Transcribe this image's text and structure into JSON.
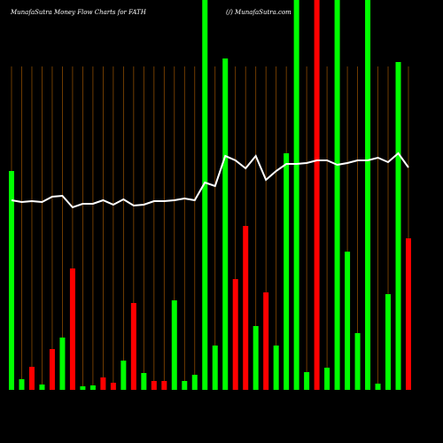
{
  "chart_data": {
    "type": "bar",
    "title": "MunafaSutra  Money Flow  Charts for FATH",
    "subtitle": "(/) MunafaSutra.com",
    "ylim": [
      0,
      440
    ],
    "bar_colors": [
      "#00ff00",
      "#00ff00",
      "#ff0000",
      "#00ff00",
      "#ff0000",
      "#00ff00",
      "#ff0000",
      "#00ff00",
      "#00ff00",
      "#ff0000",
      "#ff0000",
      "#00ff00",
      "#ff0000",
      "#00ff00",
      "#ff0000",
      "#ff0000",
      "#00ff00",
      "#00ff00",
      "#00ff00",
      "#00ff00",
      "#00ff00",
      "#00ff00",
      "#ff0000",
      "#ff0000",
      "#00ff00",
      "#ff0000",
      "#00ff00",
      "#00ff00",
      "#00ff00",
      "#00ff00",
      "#ff0000",
      "#00ff00",
      "#00ff00",
      "#00ff00",
      "#00ff00",
      "#00ff00",
      "#00ff00",
      "#00ff00",
      "#00ff00",
      "#ff0000"
    ],
    "values": [
      247,
      12,
      26,
      6,
      46,
      59,
      137,
      4,
      5,
      14,
      8,
      33,
      98,
      19,
      10,
      10,
      101,
      10,
      17,
      440,
      50,
      374,
      125,
      185,
      72,
      110,
      50,
      267,
      440,
      20,
      440,
      25,
      440,
      156,
      64,
      440,
      7,
      108,
      370,
      171
    ],
    "line_color": "#ffffff",
    "line_values": [
      214,
      212,
      213,
      212,
      218,
      219,
      206,
      210,
      210,
      214,
      209,
      215,
      208,
      209,
      213,
      213,
      214,
      216,
      214,
      234,
      230,
      264,
      259,
      250,
      264,
      237,
      247,
      255,
      255,
      256,
      259,
      259,
      254,
      256,
      259,
      259,
      262,
      257,
      267,
      251
    ]
  }
}
